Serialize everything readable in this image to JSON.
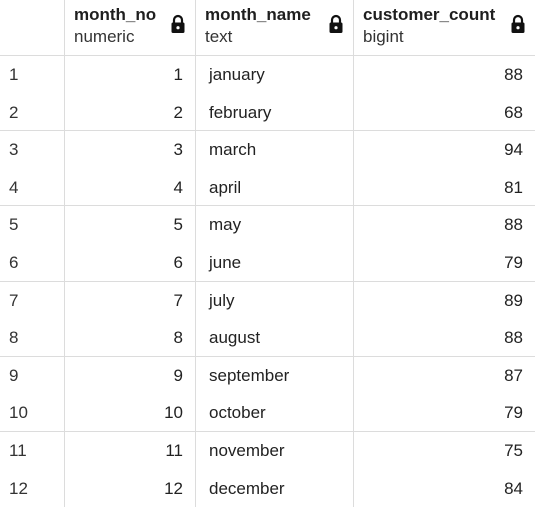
{
  "columns": [
    {
      "name": "month_no",
      "type": "numeric"
    },
    {
      "name": "month_name",
      "type": "text"
    },
    {
      "name": "customer_count",
      "type": "bigint"
    }
  ],
  "rows": [
    {
      "index": "1",
      "month_no": "1",
      "month_name": "january",
      "customer_count": "88"
    },
    {
      "index": "2",
      "month_no": "2",
      "month_name": "february",
      "customer_count": "68"
    },
    {
      "index": "3",
      "month_no": "3",
      "month_name": "march",
      "customer_count": "94"
    },
    {
      "index": "4",
      "month_no": "4",
      "month_name": "april",
      "customer_count": "81"
    },
    {
      "index": "5",
      "month_no": "5",
      "month_name": "may",
      "customer_count": "88"
    },
    {
      "index": "6",
      "month_no": "6",
      "month_name": "june",
      "customer_count": "79"
    },
    {
      "index": "7",
      "month_no": "7",
      "month_name": "july",
      "customer_count": "89"
    },
    {
      "index": "8",
      "month_no": "8",
      "month_name": "august",
      "customer_count": "88"
    },
    {
      "index": "9",
      "month_no": "9",
      "month_name": "september",
      "customer_count": "87"
    },
    {
      "index": "10",
      "month_no": "10",
      "month_name": "october",
      "customer_count": "79"
    },
    {
      "index": "11",
      "month_no": "11",
      "month_name": "november",
      "customer_count": "75"
    },
    {
      "index": "12",
      "month_no": "12",
      "month_name": "december",
      "customer_count": "84"
    }
  ],
  "icons": {
    "column_lock": "lock-icon"
  }
}
